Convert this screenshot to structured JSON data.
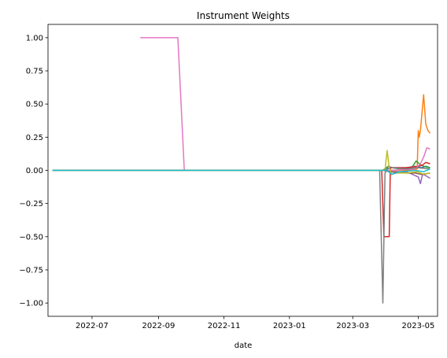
{
  "chart_data": {
    "type": "line",
    "title": "Instrument Weights",
    "xlabel": "date",
    "ylabel": "",
    "xlim": [
      "2022-05-21",
      "2023-05-19"
    ],
    "ylim": [
      -1.1,
      1.1
    ],
    "x_ticks": [
      {
        "date": "2022-07-01",
        "label": "2022-07"
      },
      {
        "date": "2022-09-01",
        "label": "2022-09"
      },
      {
        "date": "2022-11-01",
        "label": "2022-11"
      },
      {
        "date": "2023-01-01",
        "label": "2023-01"
      },
      {
        "date": "2023-03-01",
        "label": "2023-03"
      },
      {
        "date": "2023-05-01",
        "label": "2023-05"
      }
    ],
    "y_ticks": [
      {
        "value": 1.0,
        "label": "1.00"
      },
      {
        "value": 0.75,
        "label": "0.75"
      },
      {
        "value": 0.5,
        "label": "0.50"
      },
      {
        "value": 0.25,
        "label": "0.25"
      },
      {
        "value": 0.0,
        "label": "0.00"
      },
      {
        "value": -0.25,
        "label": "−0.25"
      },
      {
        "value": -0.5,
        "label": "−0.50"
      },
      {
        "value": -0.75,
        "label": "−0.75"
      },
      {
        "value": -1.0,
        "label": "−1.00"
      }
    ],
    "grid": false,
    "legend": "none",
    "series": [
      {
        "color": "#1f77b4",
        "points": [
          [
            "2022-05-25",
            0
          ],
          [
            "2023-03-29",
            0
          ],
          [
            "2023-04-02",
            0.01
          ],
          [
            "2023-04-06",
            0.02
          ],
          [
            "2023-04-10",
            0.02
          ],
          [
            "2023-04-20",
            0.02
          ],
          [
            "2023-04-28",
            0.03
          ],
          [
            "2023-05-04",
            0.02
          ],
          [
            "2023-05-08",
            0.03
          ],
          [
            "2023-05-12",
            0.02
          ]
        ]
      },
      {
        "color": "#ff7f0e",
        "points": [
          [
            "2022-05-25",
            0
          ],
          [
            "2023-03-29",
            0
          ],
          [
            "2023-04-05",
            0
          ],
          [
            "2023-04-20",
            0
          ],
          [
            "2023-04-30",
            0.01
          ],
          [
            "2023-05-01",
            0.3
          ],
          [
            "2023-05-02",
            0.25
          ],
          [
            "2023-05-03",
            0.3
          ],
          [
            "2023-05-06",
            0.57
          ],
          [
            "2023-05-08",
            0.35
          ],
          [
            "2023-05-10",
            0.3
          ],
          [
            "2023-05-12",
            0.28
          ]
        ]
      },
      {
        "color": "#2ca02c",
        "points": [
          [
            "2022-05-25",
            0
          ],
          [
            "2023-03-29",
            0
          ],
          [
            "2023-04-03",
            0.03
          ],
          [
            "2023-04-06",
            0.02
          ],
          [
            "2023-04-15",
            0.01
          ],
          [
            "2023-04-25",
            0.02
          ],
          [
            "2023-04-29",
            0.07
          ],
          [
            "2023-05-02",
            0.05
          ],
          [
            "2023-05-06",
            0.03
          ],
          [
            "2023-05-12",
            0.02
          ]
        ]
      },
      {
        "color": "#d62728",
        "points": [
          [
            "2022-05-25",
            0
          ],
          [
            "2023-03-28",
            0
          ],
          [
            "2023-03-30",
            -0.5
          ],
          [
            "2023-04-04",
            -0.5
          ],
          [
            "2023-04-05",
            0.02
          ],
          [
            "2023-04-20",
            0.02
          ],
          [
            "2023-05-01",
            0.03
          ],
          [
            "2023-05-05",
            0.04
          ],
          [
            "2023-05-08",
            0.06
          ],
          [
            "2023-05-12",
            0.05
          ]
        ]
      },
      {
        "color": "#9467bd",
        "points": [
          [
            "2022-05-25",
            0
          ],
          [
            "2023-03-29",
            0
          ],
          [
            "2023-04-05",
            -0.01
          ],
          [
            "2023-04-20",
            -0.01
          ],
          [
            "2023-05-01",
            -0.05
          ],
          [
            "2023-05-03",
            -0.1
          ],
          [
            "2023-05-05",
            -0.03
          ],
          [
            "2023-05-08",
            -0.04
          ],
          [
            "2023-05-10",
            -0.05
          ],
          [
            "2023-05-12",
            -0.06
          ]
        ]
      },
      {
        "color": "#8c564b",
        "points": [
          [
            "2022-05-25",
            0
          ],
          [
            "2023-03-29",
            0
          ],
          [
            "2023-04-04",
            -0.01
          ],
          [
            "2023-04-20",
            -0.02
          ],
          [
            "2023-04-28",
            -0.02
          ],
          [
            "2023-05-04",
            -0.03
          ],
          [
            "2023-05-12",
            -0.02
          ]
        ]
      },
      {
        "color": "#e377c2",
        "points": [
          [
            "2022-08-15",
            1.0
          ],
          [
            "2022-09-19",
            1.0
          ],
          [
            "2022-09-25",
            0.0
          ],
          [
            "2023-03-29",
            0
          ],
          [
            "2023-04-05",
            0
          ],
          [
            "2023-04-28",
            0.01
          ],
          [
            "2023-05-03",
            0.05
          ],
          [
            "2023-05-06",
            0.1
          ],
          [
            "2023-05-09",
            0.17
          ],
          [
            "2023-05-12",
            0.16
          ]
        ]
      },
      {
        "color": "#7f7f7f",
        "points": [
          [
            "2022-05-25",
            0
          ],
          [
            "2023-03-26",
            0
          ],
          [
            "2023-03-29",
            -1.0
          ],
          [
            "2023-03-31",
            -0.02
          ],
          [
            "2023-04-03",
            0.03
          ],
          [
            "2023-04-07",
            0.02
          ],
          [
            "2023-04-20",
            0.01
          ],
          [
            "2023-04-30",
            0.02
          ],
          [
            "2023-05-12",
            0.01
          ]
        ]
      },
      {
        "color": "#bcbd22",
        "points": [
          [
            "2022-05-25",
            0
          ],
          [
            "2023-03-31",
            0
          ],
          [
            "2023-04-02",
            0.15
          ],
          [
            "2023-04-04",
            0.02
          ],
          [
            "2023-04-06",
            -0.03
          ],
          [
            "2023-04-10",
            -0.02
          ],
          [
            "2023-04-20",
            -0.02
          ],
          [
            "2023-04-30",
            -0.01
          ],
          [
            "2023-05-06",
            -0.03
          ],
          [
            "2023-05-12",
            -0.02
          ]
        ]
      },
      {
        "color": "#17becf",
        "points": [
          [
            "2022-05-25",
            0
          ],
          [
            "2023-04-02",
            0
          ],
          [
            "2023-04-06",
            -0.03
          ],
          [
            "2023-04-14",
            -0.01
          ],
          [
            "2023-04-28",
            0
          ],
          [
            "2023-05-06",
            -0.01
          ],
          [
            "2023-05-12",
            0.01
          ]
        ]
      }
    ]
  }
}
